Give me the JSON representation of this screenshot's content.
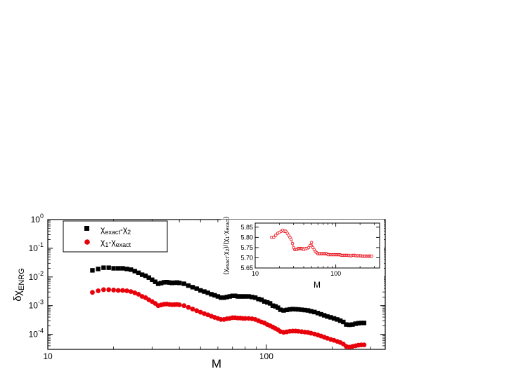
{
  "chart_data": [
    {
      "type": "scatter",
      "title": "",
      "xlabel": "M",
      "ylabel": "δχ",
      "ylabel_sub": "ENRG",
      "x_scale": "log",
      "y_scale": "log",
      "xlim": [
        10,
        350
      ],
      "ylim": [
        3e-05,
        1
      ],
      "x_ticks": [
        {
          "value": 10,
          "label": "10"
        },
        {
          "value": 100,
          "label": "100"
        }
      ],
      "y_ticks": [
        {
          "value": 1,
          "mant": "10",
          "exp": "0"
        },
        {
          "value": 0.1,
          "mant": "10",
          "exp": "-1"
        },
        {
          "value": 0.01,
          "mant": "10",
          "exp": "-2"
        },
        {
          "value": 0.001,
          "mant": "10",
          "exp": "-3"
        },
        {
          "value": 0.0001,
          "mant": "10",
          "exp": "-4"
        }
      ],
      "legend_position": "top-left",
      "series": [
        {
          "name_parts": [
            "χ",
            "exact",
            "-χ",
            "2",
            ""
          ],
          "color": "#000000",
          "marker": "square",
          "x": [
            16,
            17,
            18,
            19,
            20,
            21,
            22,
            23,
            24,
            25,
            26,
            27,
            28,
            29,
            30,
            31,
            32,
            33,
            34,
            35,
            36,
            37,
            38,
            39,
            40,
            42,
            44,
            46,
            48,
            50,
            52,
            54,
            56,
            58,
            60,
            62,
            64,
            66,
            68,
            70,
            72,
            74,
            76,
            78,
            80,
            83,
            86,
            89,
            92,
            95,
            98,
            101,
            104,
            107,
            110,
            113,
            116,
            120,
            124,
            128,
            132,
            136,
            140,
            145,
            150,
            155,
            160,
            166,
            172,
            178,
            184,
            190,
            197,
            204,
            211,
            218,
            225,
            232,
            240,
            248,
            256,
            264,
            272,
            280
          ],
          "y": [
            0.017,
            0.019,
            0.021,
            0.021,
            0.02,
            0.02,
            0.02,
            0.019,
            0.018,
            0.016,
            0.014,
            0.012,
            0.011,
            0.0095,
            0.008,
            0.0068,
            0.0058,
            0.0061,
            0.0065,
            0.0066,
            0.0064,
            0.0062,
            0.0063,
            0.0064,
            0.0062,
            0.0058,
            0.005,
            0.0044,
            0.0039,
            0.0034,
            0.0031,
            0.0028,
            0.0025,
            0.0023,
            0.0021,
            0.0019,
            0.0019,
            0.002,
            0.0021,
            0.0022,
            0.0022,
            0.0021,
            0.0021,
            0.0021,
            0.0021,
            0.0021,
            0.002,
            0.0019,
            0.0017,
            0.0016,
            0.0014,
            0.0013,
            0.0012,
            0.001,
            0.00095,
            0.00085,
            0.00072,
            0.00068,
            0.00071,
            0.00074,
            0.00076,
            0.00075,
            0.00074,
            0.00072,
            0.0007,
            0.00068,
            0.00064,
            0.0006,
            0.00055,
            0.0005,
            0.00046,
            0.00042,
            0.00039,
            0.00036,
            0.00033,
            0.0003,
            0.00027,
            0.00022,
            0.000215,
            0.00022,
            0.000235,
            0.000245,
            0.00025,
            0.00025
          ]
        },
        {
          "name_parts": [
            "χ",
            "1",
            "-χ",
            "exact",
            ""
          ],
          "color": "#e8000b",
          "marker": "circle",
          "x": [
            16,
            17,
            18,
            19,
            20,
            21,
            22,
            23,
            24,
            25,
            26,
            27,
            28,
            29,
            30,
            31,
            32,
            33,
            34,
            35,
            36,
            37,
            38,
            39,
            40,
            42,
            44,
            46,
            48,
            50,
            52,
            54,
            56,
            58,
            60,
            62,
            64,
            66,
            68,
            70,
            72,
            74,
            76,
            78,
            80,
            83,
            86,
            89,
            92,
            95,
            98,
            101,
            104,
            107,
            110,
            113,
            116,
            120,
            124,
            128,
            132,
            136,
            140,
            145,
            150,
            155,
            160,
            166,
            172,
            178,
            184,
            190,
            197,
            204,
            211,
            218,
            225,
            232,
            240,
            248,
            256,
            264,
            272,
            280
          ],
          "y": [
            0.0029,
            0.0033,
            0.0036,
            0.0036,
            0.0035,
            0.0034,
            0.0034,
            0.0033,
            0.0031,
            0.0028,
            0.0025,
            0.0021,
            0.0019,
            0.0016,
            0.0014,
            0.0012,
            0.001,
            0.00106,
            0.00112,
            0.00114,
            0.0011,
            0.00108,
            0.00109,
            0.0011,
            0.00107,
            0.001,
            0.00087,
            0.00076,
            0.00067,
            0.00059,
            0.00053,
            0.00048,
            0.00043,
            0.00039,
            0.00036,
            0.00033,
            0.00033,
            0.00035,
            0.00036,
            0.00038,
            0.00038,
            0.00037,
            0.00037,
            0.00036,
            0.00036,
            0.00036,
            0.00035,
            0.00033,
            0.0003,
            0.00027,
            0.00025,
            0.00022,
            0.0002,
            0.00018,
            0.00016,
            0.000145,
            0.000125,
            0.000118,
            0.000122,
            0.000128,
            0.00013,
            0.00013,
            0.000128,
            0.000124,
            0.00012,
            0.000117,
            0.00011,
            0.000103,
            9.5e-05,
            8.7e-05,
            8e-05,
            7.3e-05,
            6.7e-05,
            6.2e-05,
            5.7e-05,
            5.2e-05,
            4.6e-05,
            3.8e-05,
            3.6e-05,
            3.8e-05,
            4e-05,
            4.2e-05,
            4.3e-05,
            4.3e-05
          ]
        }
      ]
    },
    {
      "type": "line",
      "title": "",
      "xlabel": "M",
      "ylabel_parts": [
        "(χ",
        "exact",
        "-χ",
        "2",
        ")/(χ",
        "1",
        "-χ",
        "exact",
        ")"
      ],
      "x_scale": "log",
      "y_scale": "linear",
      "xlim": [
        10,
        350
      ],
      "ylim": [
        5.65,
        5.87
      ],
      "x_ticks": [
        {
          "value": 10,
          "label": "10"
        },
        {
          "value": 100,
          "label": "100"
        }
      ],
      "y_ticks": [
        {
          "value": 5.65,
          "label": "5.65"
        },
        {
          "value": 5.7,
          "label": "5.70"
        },
        {
          "value": 5.75,
          "label": "5.75"
        },
        {
          "value": 5.8,
          "label": "5.80"
        },
        {
          "value": 5.85,
          "label": "5.85"
        }
      ],
      "series": [
        {
          "name": "",
          "color": "#e8000b",
          "marker": "open-circle",
          "x": [
            16,
            17,
            18,
            19,
            20,
            21,
            22,
            23,
            24,
            25,
            26,
            27,
            28,
            29,
            30,
            31,
            32,
            33,
            34,
            35,
            36,
            37,
            38,
            39,
            40,
            42,
            44,
            46,
            48,
            50,
            52,
            54,
            56,
            58,
            60,
            62,
            64,
            66,
            68,
            70,
            72,
            74,
            76,
            78,
            80,
            83,
            86,
            89,
            92,
            95,
            98,
            101,
            104,
            107,
            110,
            113,
            116,
            120,
            124,
            128,
            132,
            136,
            140,
            145,
            150,
            155,
            160,
            166,
            172,
            178,
            184,
            190,
            197,
            204,
            211,
            218,
            225,
            232,
            240,
            248,
            256,
            264,
            272,
            280
          ],
          "y": [
            5.8,
            5.8,
            5.81,
            5.82,
            5.825,
            5.83,
            5.835,
            5.83,
            5.83,
            5.82,
            5.81,
            5.8,
            5.79,
            5.77,
            5.75,
            5.74,
            5.74,
            5.74,
            5.745,
            5.745,
            5.745,
            5.745,
            5.745,
            5.745,
            5.74,
            5.745,
            5.745,
            5.75,
            5.76,
            5.775,
            5.75,
            5.74,
            5.73,
            5.725,
            5.72,
            5.72,
            5.72,
            5.72,
            5.72,
            5.72,
            5.72,
            5.72,
            5.72,
            5.72,
            5.715,
            5.715,
            5.715,
            5.715,
            5.715,
            5.715,
            5.715,
            5.715,
            5.715,
            5.715,
            5.715,
            5.715,
            5.712,
            5.712,
            5.712,
            5.712,
            5.712,
            5.712,
            5.712,
            5.712,
            5.71,
            5.71,
            5.712,
            5.712,
            5.712,
            5.71,
            5.71,
            5.71,
            5.71,
            5.71,
            5.708,
            5.708,
            5.708,
            5.708,
            5.708,
            5.708,
            5.708,
            5.708,
            5.708,
            5.708
          ]
        }
      ]
    }
  ]
}
